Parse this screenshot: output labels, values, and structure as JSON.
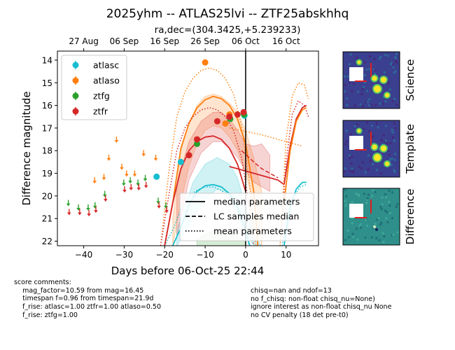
{
  "chart_data": {
    "type": "scatter",
    "title": "2025yhm -- ATLAS25lvi -- ZTF25abskhhq",
    "subtitle": "ra,dec=(304.3425,+5.239233)",
    "xlabel": "Days before 06-Oct-25 22:44",
    "ylabel": "Difference magnitude",
    "xlim": [
      -46.5,
      18
    ],
    "ylim": [
      22.2,
      13.6
    ],
    "x_ticks": [
      -40,
      -30,
      -20,
      -10,
      0,
      10
    ],
    "y_ticks": [
      14,
      15,
      16,
      17,
      18,
      19,
      20,
      21,
      22
    ],
    "x_tick_labels": [
      "−40",
      "−30",
      "−20",
      "−10",
      "0",
      "10"
    ],
    "y_tick_labels": [
      "14",
      "15",
      "16",
      "17",
      "18",
      "19",
      "20",
      "21",
      "22"
    ],
    "top_axis": {
      "labels": [
        "27 Aug",
        "06 Sep",
        "16 Sep",
        "26 Sep",
        "06 Oct",
        "16 Oct"
      ],
      "positions": [
        -40,
        -30,
        -20,
        -10,
        0,
        10
      ]
    },
    "now_line_x": 0,
    "colors": {
      "atlasc": "#17becf",
      "atlaso": "#ff7f0e",
      "ztfg": "#2ca02c",
      "ztfr": "#d62728"
    },
    "legend": {
      "placement": "upper-left",
      "entries": [
        {
          "label": "atlasc",
          "series": "atlasc"
        },
        {
          "label": "atlaso",
          "series": "atlaso"
        },
        {
          "label": "ztfg",
          "series": "ztfg"
        },
        {
          "label": "ztfr",
          "series": "ztfr"
        }
      ]
    },
    "style_legend": {
      "placement": "lower-right",
      "entries": [
        {
          "label": "median parameters",
          "dash": "solid"
        },
        {
          "label": "LC samples median",
          "dash": "dashed"
        },
        {
          "label": "mean parameters",
          "dash": "dotted"
        }
      ]
    },
    "detections": [
      {
        "series": "atlasc",
        "x": -22.0,
        "y": 19.15
      },
      {
        "series": "atlasc",
        "x": -16.0,
        "y": 18.5
      },
      {
        "series": "atlasc",
        "x": -0.3,
        "y": 16.45
      },
      {
        "series": "atlaso",
        "x": -10.0,
        "y": 14.1
      },
      {
        "series": "atlaso",
        "x": -5.0,
        "y": 16.8
      },
      {
        "series": "atlaso",
        "x": -4.0,
        "y": 16.4
      },
      {
        "series": "ztfg",
        "x": -12.0,
        "y": 17.7
      },
      {
        "series": "ztfg",
        "x": -3.8,
        "y": 16.6
      },
      {
        "series": "ztfg",
        "x": -0.4,
        "y": 16.4
      },
      {
        "series": "ztfr",
        "x": -14.0,
        "y": 18.2
      },
      {
        "series": "ztfr",
        "x": -12.0,
        "y": 17.5
      },
      {
        "series": "ztfr",
        "x": -7.0,
        "y": 16.7
      },
      {
        "series": "ztfr",
        "x": -4.0,
        "y": 16.5
      },
      {
        "series": "ztfr",
        "x": -2.0,
        "y": 16.4
      },
      {
        "series": "ztfr",
        "x": -0.5,
        "y": 16.3
      }
    ],
    "upper_limits": [
      {
        "series": "ztfg",
        "x": -43.8,
        "y": 20.3
      },
      {
        "series": "ztfr",
        "x": -43.6,
        "y": 20.7
      },
      {
        "series": "ztfg",
        "x": -41.3,
        "y": 20.5
      },
      {
        "series": "ztfr",
        "x": -41.0,
        "y": 20.7
      },
      {
        "series": "ztfg",
        "x": -38.9,
        "y": 20.5
      },
      {
        "series": "ztfr",
        "x": -38.7,
        "y": 20.75
      },
      {
        "series": "atlaso",
        "x": -37.3,
        "y": 19.3
      },
      {
        "series": "ztfg",
        "x": -37.2,
        "y": 20.4
      },
      {
        "series": "ztfr",
        "x": -37.0,
        "y": 20.6
      },
      {
        "series": "atlaso",
        "x": -35.0,
        "y": 19.15
      },
      {
        "series": "ztfg",
        "x": -34.8,
        "y": 19.9
      },
      {
        "series": "ztfr",
        "x": -34.6,
        "y": 20.1
      },
      {
        "series": "atlaso",
        "x": -33.8,
        "y": 18.3
      },
      {
        "series": "atlaso",
        "x": -31.9,
        "y": 17.5
      },
      {
        "series": "atlaso",
        "x": -30.6,
        "y": 18.7
      },
      {
        "series": "ztfg",
        "x": -30.1,
        "y": 19.4
      },
      {
        "series": "ztfr",
        "x": -29.9,
        "y": 19.7
      },
      {
        "series": "atlaso",
        "x": -29.4,
        "y": 19.0
      },
      {
        "series": "ztfg",
        "x": -28.5,
        "y": 19.3
      },
      {
        "series": "ztfr",
        "x": -28.3,
        "y": 19.6
      },
      {
        "series": "atlaso",
        "x": -27.4,
        "y": 19.0
      },
      {
        "series": "ztfg",
        "x": -26.6,
        "y": 19.4
      },
      {
        "series": "ztfr",
        "x": -26.4,
        "y": 19.6
      },
      {
        "series": "atlaso",
        "x": -25.2,
        "y": 18.1
      },
      {
        "series": "ztfg",
        "x": -24.8,
        "y": 19.2
      },
      {
        "series": "ztfr",
        "x": -24.6,
        "y": 19.5
      },
      {
        "series": "atlaso",
        "x": -22.2,
        "y": 18.3
      },
      {
        "series": "ztfg",
        "x": -21.6,
        "y": 20.2
      },
      {
        "series": "ztfr",
        "x": -21.4,
        "y": 20.4
      },
      {
        "series": "ztfg",
        "x": -19.7,
        "y": 20.4
      },
      {
        "series": "ztfr",
        "x": -19.5,
        "y": 20.6
      }
    ],
    "bands": [
      {
        "series": "atlasc",
        "x": [
          -17,
          -13,
          -10,
          -7,
          -4,
          -2,
          0,
          2,
          4
        ],
        "lo": [
          21.5,
          19.4,
          18.6,
          18.3,
          18.6,
          19.2,
          20.5,
          21.8,
          22.2
        ],
        "hi": [
          22.2,
          21.0,
          20.1,
          19.7,
          19.9,
          20.6,
          21.6,
          22.2,
          22.2
        ]
      },
      {
        "series": "atlaso",
        "x": [
          -18,
          -16,
          -14,
          -12,
          -10,
          -8,
          -6,
          -4,
          -2,
          0,
          2,
          4
        ],
        "lo": [
          21.0,
          18.0,
          16.8,
          16.0,
          15.6,
          15.5,
          15.6,
          15.9,
          16.3,
          17.1,
          18.3,
          19.8
        ],
        "hi": [
          22.2,
          20.3,
          18.7,
          17.7,
          17.1,
          16.9,
          17.0,
          17.4,
          18.0,
          19.0,
          20.4,
          22.2
        ]
      },
      {
        "series": "ztfr",
        "x": [
          -17,
          -14,
          -11,
          -8,
          -6,
          -4,
          -2,
          0,
          2,
          4,
          6
        ],
        "lo": [
          19.5,
          17.6,
          16.7,
          16.3,
          16.3,
          16.6,
          17.1,
          17.7,
          17.8,
          17.7,
          18.2
        ],
        "hi": [
          21.8,
          19.3,
          18.1,
          17.6,
          17.6,
          17.9,
          18.3,
          18.9,
          19.4,
          19.6,
          19.8
        ]
      },
      {
        "series": "ztfg",
        "x": [
          -12,
          -9,
          -6,
          -3,
          0
        ],
        "lo": [
          21.9,
          21.6,
          21.5,
          21.7,
          22.0
        ],
        "hi": [
          22.2,
          22.2,
          22.2,
          22.2,
          22.2
        ]
      }
    ],
    "curves": [
      {
        "series": "atlasc",
        "dash": "solid",
        "x": [
          -18,
          -16,
          -14,
          -12,
          -10,
          -8,
          -6,
          -4,
          -2,
          0,
          1
        ],
        "y": [
          22.2,
          21.4,
          20.4,
          19.8,
          19.55,
          19.5,
          19.6,
          19.9,
          20.5,
          21.5,
          22.2
        ]
      },
      {
        "series": "atlasc",
        "dash": "dotted",
        "x": [
          -20,
          -18,
          -16,
          -14,
          -12,
          -10,
          -8,
          -6,
          -4,
          -2,
          0,
          1
        ],
        "y": [
          22.2,
          21.5,
          20.6,
          20.0,
          19.75,
          19.6,
          19.6,
          19.75,
          20.1,
          20.7,
          21.8,
          22.2
        ]
      },
      {
        "series": "atlaso",
        "dash": "solid",
        "x": [
          -20,
          -18,
          -16,
          -14,
          -12,
          -10,
          -8,
          -6,
          -4,
          -2,
          0,
          2,
          3
        ],
        "y": [
          22.2,
          20.3,
          17.9,
          16.8,
          16.1,
          15.75,
          15.6,
          15.7,
          16.0,
          16.6,
          17.7,
          19.8,
          22.2
        ]
      },
      {
        "series": "atlaso",
        "dash": "dotted",
        "x": [
          -21,
          -19,
          -17,
          -15,
          -13,
          -11,
          -9,
          -7,
          -5,
          -3,
          -1,
          1,
          2.5
        ],
        "y": [
          22.2,
          19.0,
          16.5,
          15.4,
          14.8,
          14.45,
          14.35,
          14.45,
          14.8,
          15.5,
          16.9,
          19.5,
          22.2
        ]
      },
      {
        "series": "atlaso",
        "dash": "dotted",
        "x": [
          -4,
          0,
          4,
          8,
          10,
          12,
          14
        ],
        "y": [
          17.0,
          17.15,
          17.3,
          17.5,
          17.6,
          17.7,
          17.8
        ]
      },
      {
        "series": "ztfr",
        "dash": "solid",
        "x": [
          -20,
          -18,
          -16,
          -14,
          -12,
          -10,
          -8,
          -6,
          -4,
          -2,
          0
        ],
        "y": [
          22.2,
          20.3,
          18.8,
          18.0,
          17.6,
          17.4,
          17.35,
          17.5,
          17.9,
          18.6,
          19.8
        ]
      },
      {
        "series": "ztfr",
        "dash": "solid",
        "x": [
          -4,
          0,
          4,
          8,
          9.5
        ],
        "y": [
          18.7,
          18.9,
          19.1,
          19.3,
          19.5
        ]
      },
      {
        "series": "ztfr",
        "dash": "dotted",
        "x": [
          -21,
          -19,
          -17,
          -15,
          -13,
          -11,
          -9,
          -7,
          -5,
          -3,
          -1,
          1,
          2
        ],
        "y": [
          22.2,
          20.0,
          18.0,
          17.0,
          16.5,
          16.2,
          16.1,
          16.2,
          16.5,
          17.1,
          18.3,
          20.6,
          22.2
        ]
      },
      {
        "series": "ztfr",
        "dash": "dashed",
        "x": [
          -1,
          2,
          4,
          6,
          8
        ],
        "y": [
          18.0,
          18.5,
          18.8,
          19.0,
          19.2
        ]
      },
      {
        "series": "ztfr",
        "dash": "solid",
        "x": [
          9.5,
          11,
          12.5,
          14,
          15
        ],
        "y": [
          19.5,
          17.8,
          16.6,
          16.1,
          16.0
        ]
      },
      {
        "series": "ztfr",
        "dash": "dotted",
        "x": [
          8.5,
          10,
          11.5,
          13,
          14.5,
          15.5
        ],
        "y": [
          22.2,
          18.5,
          16.4,
          15.8,
          16.0,
          16.5
        ]
      },
      {
        "series": "atlaso",
        "dash": "solid",
        "x": [
          9.5,
          11,
          12.5,
          14,
          15
        ],
        "y": [
          20.3,
          18.0,
          16.7,
          16.2,
          16.1
        ]
      },
      {
        "series": "atlaso",
        "dash": "dotted",
        "x": [
          8.5,
          10,
          11.5,
          13,
          14.5,
          15.5
        ],
        "y": [
          22.2,
          17.5,
          15.6,
          15.0,
          15.1,
          15.7
        ]
      },
      {
        "series": "atlasc",
        "dash": "solid",
        "x": [
          9.5,
          11,
          12.5,
          14,
          15
        ],
        "y": [
          22.2,
          20.5,
          19.7,
          19.4,
          19.4
        ]
      },
      {
        "series": "atlasc",
        "dash": "dotted",
        "x": [
          9,
          10.5,
          12,
          13.5,
          15
        ],
        "y": [
          22.2,
          20.8,
          20.0,
          19.6,
          19.5
        ]
      }
    ],
    "thumbnails": [
      {
        "label": "Science"
      },
      {
        "label": "Template"
      },
      {
        "label": "Difference"
      }
    ]
  },
  "comments_left": "score comments:\n    mag_factor=10.59 from mag=16.45\n    timespan f=0.96 from timespan=21.9d\n    f_rise: atlasc=1.00 ztfr=1.00 atlaso=0.50\n    f_rise: ztfg=1.00",
  "comments_right": "chisq=nan and ndof=13\nno f_chisq: non-float chisq_nu=None)\nignore interest as non-float chisq_nu None\nno CV penalty (18 det pre-t0)"
}
